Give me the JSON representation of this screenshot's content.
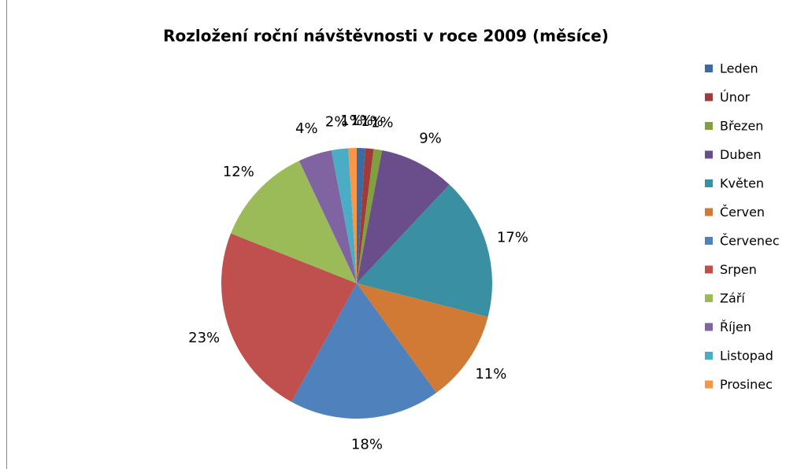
{
  "chart_data": {
    "type": "pie",
    "title": "Rozložení roční návštěvnosti v roce 2009 (měsíce)",
    "categories": [
      "Leden",
      "Únor",
      "Březen",
      "Duben",
      "Květen",
      "Červen",
      "Červenec",
      "Srpen",
      "Září",
      "Říjen",
      "Listopad",
      "Prosinec"
    ],
    "values": [
      1,
      1,
      1,
      9,
      17,
      11,
      18,
      23,
      12,
      4,
      2,
      1
    ],
    "value_labels": [
      "1%",
      "1%",
      "1%",
      "9%",
      "17%",
      "11%",
      "18%",
      "23%",
      "12%",
      "4%",
      "2%",
      "1%"
    ],
    "colors": [
      "#3C6AA1",
      "#A33A3A",
      "#7FA03C",
      "#6A4E8C",
      "#3A8FA3",
      "#D07A36",
      "#4F81BD",
      "#C0504D",
      "#9BBB59",
      "#8064A2",
      "#4BACC6",
      "#F79646"
    ],
    "legend": "right"
  }
}
